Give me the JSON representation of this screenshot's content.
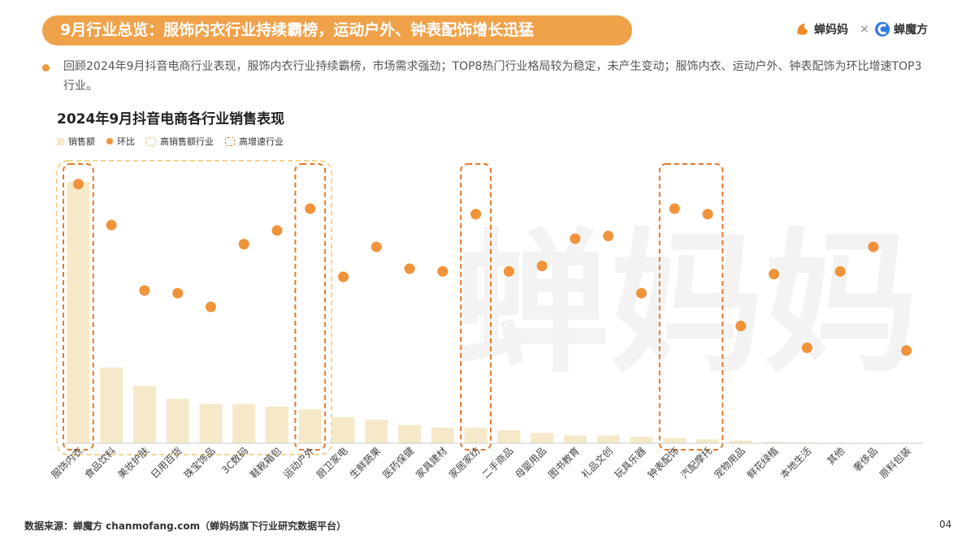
{
  "header": {
    "title": "9月行业总览：服饰内衣行业持续霸榜，运动户外、钟表配饰增长迅猛",
    "brand_left": "蝉妈妈",
    "brand_sep": "×",
    "brand_right": "蝉魔方"
  },
  "summary": "回顾2024年9月抖音电商行业表现，服饰内衣行业持续霸榜，市场需求强劲；TOP8热门行业格局较为稳定，未产生变动；服饰内衣、运动户外、钟表配饰为环比增速TOP3行业。",
  "legend": {
    "sales": "销售额",
    "mom": "环比",
    "high_sales": "高销售额行业",
    "high_growth": "高增速行业"
  },
  "footer": {
    "source": "数据来源：蝉魔方 chanmofang.com（蝉妈妈旗下行业研究数据平台）",
    "page": "04"
  },
  "watermark": "蝉妈妈",
  "colors": {
    "accent": "#f0a24a",
    "bar": "#f6e9c9",
    "dot": "#f0933a",
    "high_sales_box": "#f4c66a",
    "high_growth_box": "#e27a2c"
  },
  "chart_data": {
    "type": "bar",
    "title": "2024年9月抖音电商各行业销售表现",
    "categories": [
      "服饰内衣",
      "食品饮料",
      "美妆护肤",
      "日用百货",
      "珠宝饰品",
      "3C数码",
      "鞋靴箱包",
      "运动户外",
      "厨卫家电",
      "生鲜蔬果",
      "医药保健",
      "家具建材",
      "家居家纺",
      "二手商品",
      "母婴用品",
      "图书教育",
      "礼品文创",
      "玩具乐器",
      "钟表配饰",
      "汽配摩托",
      "宠物用品",
      "鲜花绿植",
      "本地生活",
      "其他",
      "奢侈品",
      "原料包装"
    ],
    "series": [
      {
        "name": "销售额",
        "type": "bar",
        "values": [
          100,
          29,
          22,
          17,
          15,
          15,
          14,
          13,
          10,
          9,
          7,
          6,
          6,
          5,
          4,
          3,
          3,
          2.5,
          2,
          1.5,
          1,
          0.5,
          0.3,
          0.2,
          0.2,
          0.1
        ]
      },
      {
        "name": "环比",
        "type": "scatter",
        "values": [
          95,
          80,
          56,
          55,
          50,
          73,
          78,
          86,
          61,
          72,
          64,
          63,
          84,
          63,
          65,
          75,
          76,
          55,
          86,
          84,
          43,
          62,
          35,
          63,
          72,
          34
        ]
      }
    ],
    "highlight_groups": [
      {
        "label": "高销售额行业",
        "categories": [
          "服饰内衣",
          "食品饮料",
          "美妆护肤",
          "日用百货",
          "珠宝饰品",
          "3C数码",
          "鞋靴箱包",
          "运动户外"
        ]
      },
      {
        "label": "高增速行业",
        "categories": [
          "服饰内衣"
        ]
      },
      {
        "label": "高增速行业",
        "categories": [
          "运动户外"
        ]
      },
      {
        "label": "高增速行业",
        "categories": [
          "家居家纺"
        ]
      },
      {
        "label": "高增速行业",
        "categories": [
          "钟表配饰",
          "汽配摩托"
        ]
      }
    ],
    "grid": false,
    "legend_position": "top-left"
  }
}
